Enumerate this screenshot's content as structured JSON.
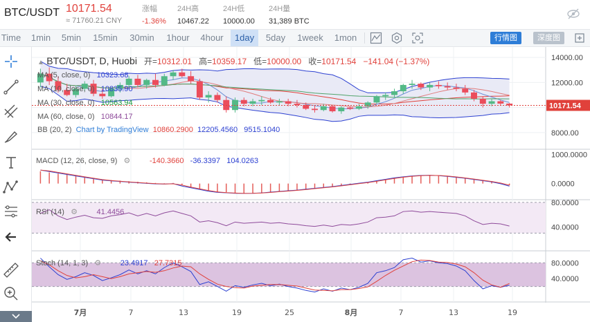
{
  "header": {
    "pair": "BTC/USDT",
    "price": "10171.54",
    "price_cny": "≈ 71760.21 CNY",
    "change_label": "涨幅",
    "change_value": "-1.36%",
    "high_label": "24H高",
    "high_value": "10467.22",
    "low_label": "24H低",
    "low_value": "10000.00",
    "vol_label": "24H量",
    "vol_value": "31,389 BTC",
    "icon": "no-eye-icon"
  },
  "toolbar": {
    "timeframes": [
      "Time",
      "1min",
      "5min",
      "15min",
      "30min",
      "1hour",
      "4hour",
      "1day",
      "5day",
      "1week",
      "1mon"
    ],
    "active_timeframe": "1day",
    "market_button": "行情图",
    "depth_button": "深度图"
  },
  "legend": {
    "title": "BTC/USDT, D, Huobi",
    "open_label": "开=",
    "open": "10312.01",
    "high_label": "高=",
    "high": "10359.17",
    "low_label": "低=",
    "low": "10000.00",
    "close_label": "收=",
    "close": "10171.54",
    "change": "−141.04 (−1.37%)",
    "ma5_label": "MA (5, close, 0)",
    "ma5": "10323.68",
    "ma10_label": "MA (10, close, 0)",
    "ma10": "10835.90",
    "ma30_label": "MA (30, close, 0)",
    "ma30": "10563.94",
    "ma60_label": "MA (60, close, 0)",
    "ma60": "10844.17",
    "bb_label": "BB (20, 2)",
    "bb_mid": "10860.2900",
    "bb_upper": "12205.4560",
    "bb_lower": "9515.1040",
    "watermark": "Chart by TradingView"
  },
  "macd": {
    "label": "MACD (12, 26, close, 9)",
    "v1": "-140.3660",
    "v2": "-36.3397",
    "v3": "104.0263"
  },
  "rsi": {
    "label": "RSI (14)",
    "v1": "41.4456"
  },
  "stoch": {
    "label": "Stoch (14, 1, 3)",
    "v1": "23.4917",
    "v2": "27.7315"
  },
  "price_axis": [
    "14000.00",
    "12000.00",
    "10000.00",
    "8000.00"
  ],
  "price_tag": "10171.54",
  "macd_axis": [
    "1000.0000",
    "0.0000"
  ],
  "rsi_axis": [
    "80.0000",
    "40.0000"
  ],
  "stoch_axis": [
    "80.0000",
    "40.0000"
  ],
  "date_axis": [
    "7月",
    "7",
    "13",
    "19",
    "25",
    "8月",
    "7",
    "13",
    "19"
  ],
  "colors": {
    "up": "#53b987",
    "down": "#eb4d5c",
    "macd_line": "#2c40d1",
    "signal_line": "#e0413b",
    "rsi_line": "#8e4a9a",
    "bb_fill": "#e9eaf6",
    "osc_fill": "#f3e9f5",
    "stoch_fill": "#dcc3e0",
    "accent": "#2e7dd7"
  },
  "chart_data": {
    "type": "candlestick",
    "title": "BTC/USDT, D, Huobi",
    "ylim": [
      7000,
      14500
    ],
    "candles": [
      [
        12000,
        13100,
        11600,
        12700
      ],
      [
        12700,
        13200,
        11800,
        12100
      ],
      [
        12100,
        12500,
        11200,
        11400
      ],
      [
        11400,
        11900,
        10900,
        11000
      ],
      [
        11000,
        11700,
        10800,
        11500
      ],
      [
        11500,
        12100,
        11300,
        11900
      ],
      [
        11900,
        12200,
        10900,
        11100
      ],
      [
        11100,
        11500,
        10700,
        10900
      ],
      [
        10900,
        11600,
        10800,
        11500
      ],
      [
        11500,
        12000,
        11200,
        11800
      ],
      [
        11800,
        12500,
        11500,
        12300
      ],
      [
        12300,
        12600,
        11600,
        11800
      ],
      [
        11800,
        12300,
        11500,
        12200
      ],
      [
        12200,
        12700,
        11600,
        11800
      ],
      [
        11800,
        12700,
        11700,
        12500
      ],
      [
        12500,
        13000,
        12200,
        12800
      ],
      [
        12800,
        13100,
        12400,
        12500
      ],
      [
        12500,
        12900,
        11900,
        12100
      ],
      [
        12100,
        12300,
        10600,
        10800
      ],
      [
        10800,
        11300,
        10400,
        11000
      ],
      [
        11000,
        11200,
        10400,
        10600
      ],
      [
        10600,
        10900,
        9600,
        9800
      ],
      [
        9800,
        10800,
        9600,
        10600
      ],
      [
        10600,
        10800,
        10100,
        10300
      ],
      [
        10300,
        10700,
        10100,
        10500
      ],
      [
        10500,
        10900,
        10200,
        10600
      ],
      [
        10600,
        10800,
        10300,
        10400
      ],
      [
        10400,
        10700,
        10200,
        10500
      ],
      [
        10500,
        10700,
        10100,
        10300
      ],
      [
        10300,
        10600,
        10000,
        10200
      ],
      [
        10200,
        10400,
        9800,
        9900
      ],
      [
        9900,
        10200,
        9600,
        9800
      ],
      [
        9800,
        10300,
        9700,
        10100
      ],
      [
        10100,
        10200,
        9600,
        9700
      ],
      [
        9700,
        10100,
        9500,
        10000
      ],
      [
        10000,
        10100,
        9800,
        9900
      ],
      [
        9900,
        10300,
        9800,
        10100
      ],
      [
        10100,
        10500,
        9900,
        10400
      ],
      [
        10400,
        11000,
        10300,
        10900
      ],
      [
        10900,
        11200,
        10600,
        11000
      ],
      [
        11000,
        11500,
        10800,
        11300
      ],
      [
        11300,
        11900,
        11100,
        11800
      ],
      [
        11800,
        12200,
        11500,
        11900
      ],
      [
        11900,
        12000,
        11400,
        11600
      ],
      [
        11600,
        12000,
        11300,
        11800
      ],
      [
        11800,
        12100,
        11500,
        11700
      ],
      [
        11700,
        12000,
        11400,
        11600
      ],
      [
        11600,
        11900,
        11300,
        11500
      ],
      [
        11500,
        11800,
        11000,
        11200
      ],
      [
        11200,
        11400,
        10500,
        10700
      ],
      [
        10700,
        10900,
        10000,
        10300
      ],
      [
        10300,
        10700,
        10100,
        10500
      ],
      [
        10500,
        10600,
        10200,
        10312
      ],
      [
        10312,
        10359,
        10000,
        10171.54
      ]
    ],
    "macd_hist": [
      420,
      380,
      340,
      300,
      260,
      220,
      180,
      140,
      120,
      100,
      80,
      60,
      40,
      20,
      10,
      20,
      -60,
      -120,
      -180,
      -240,
      -280,
      -300,
      -320,
      -330,
      -330,
      -320,
      -300,
      -280,
      -260,
      -240,
      -210,
      -180,
      -150,
      -120,
      -80,
      -40,
      0,
      40,
      90,
      140,
      190,
      230,
      260,
      280,
      290,
      280,
      260,
      230,
      200,
      160,
      120,
      80,
      20,
      -60
    ],
    "rsi": [
      62,
      68,
      58,
      52,
      56,
      59,
      55,
      54,
      58,
      60,
      63,
      58,
      62,
      58,
      63,
      66,
      62,
      58,
      48,
      50,
      47,
      42,
      48,
      46,
      47,
      48,
      46,
      47,
      45,
      44,
      42,
      41,
      43,
      41,
      44,
      43,
      45,
      48,
      55,
      56,
      58,
      65,
      66,
      64,
      65,
      64,
      63,
      62,
      58,
      50,
      44,
      46,
      45,
      41.4456
    ],
    "stoch_k": [
      92,
      70,
      50,
      38,
      45,
      55,
      48,
      35,
      42,
      50,
      62,
      52,
      60,
      52,
      68,
      80,
      70,
      58,
      25,
      32,
      20,
      8,
      22,
      18,
      24,
      28,
      22,
      26,
      20,
      16,
      10,
      6,
      14,
      8,
      16,
      12,
      18,
      28,
      55,
      60,
      68,
      88,
      92,
      82,
      85,
      80,
      78,
      72,
      60,
      35,
      14,
      22,
      18,
      23.4917
    ],
    "stoch_d": [
      85,
      75,
      60,
      48,
      42,
      45,
      50,
      45,
      40,
      45,
      52,
      55,
      58,
      56,
      60,
      67,
      72,
      70,
      52,
      38,
      26,
      20,
      17,
      16,
      21,
      23,
      25,
      25,
      23,
      21,
      16,
      11,
      10,
      9,
      12,
      12,
      15,
      19,
      33,
      48,
      61,
      72,
      83,
      87,
      86,
      82,
      81,
      77,
      70,
      55,
      36,
      24,
      18,
      27.7315
    ]
  }
}
